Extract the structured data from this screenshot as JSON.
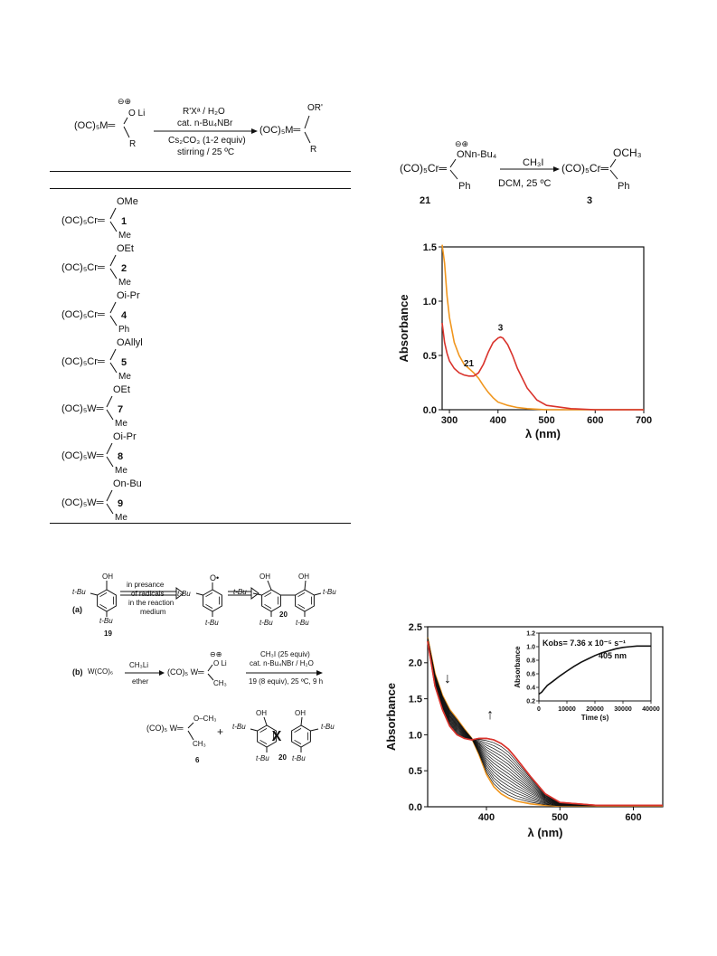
{
  "scheme_top_left": {
    "reactant_charges": "⊖⊕",
    "reactant_oli": "O Li",
    "reactant_core": "(OC)₅M═",
    "reactant_r": "R",
    "conditions_1": "R'Xᵃ / H₂O",
    "conditions_2": "cat. n-Bu₄NBr",
    "conditions_3": "Cs₂CO₃ (1-2 equiv)",
    "conditions_4": "stirring / 25 ºC",
    "product_or": "OR'",
    "product_core": "(OC)₅M═",
    "product_r": "R"
  },
  "compound_list": [
    {
      "metal": "(OC)₅Cr═",
      "or": "OMe",
      "sub": "Me",
      "number": "1"
    },
    {
      "metal": "(OC)₅Cr═",
      "or": "OEt",
      "sub": "Me",
      "number": "2"
    },
    {
      "metal": "(OC)₅Cr═",
      "or": "Oi-Pr",
      "sub": "Ph",
      "number": "4"
    },
    {
      "metal": "(OC)₅Cr═",
      "or": "OAllyl",
      "sub": "Me",
      "number": "5"
    },
    {
      "metal": "(OC)₅W═",
      "or": "OEt",
      "sub": "Me",
      "number": "7"
    },
    {
      "metal": "(OC)₅W═",
      "or": "Oi-Pr",
      "sub": "Me",
      "number": "8"
    },
    {
      "metal": "(OC)₅W═",
      "or": "On-Bu",
      "sub": "Me",
      "number": "9"
    }
  ],
  "scheme_top_right": {
    "charges": "⊖⊕",
    "reactant_sub": "ONn-Bu₄",
    "reactant_core": "(CO)₅Cr═",
    "reactant_ph": "Ph",
    "reactant_number": "21",
    "reagent": "CH₃I",
    "conditions": "DCM, 25 ºC",
    "product_och3": "OCH₃",
    "product_core": "(CO)₅Cr═",
    "product_ph": "Ph",
    "product_number": "3"
  },
  "scheme_bottom_left": {
    "a_label": "(a)",
    "b_label": "(b)",
    "arrow1_text_1": "in presance",
    "arrow1_text_2": "of radicals",
    "arrow2_text_1": "in the reaction",
    "arrow2_text_2": "medium",
    "oh": "OH",
    "t_bu": "t-Bu",
    "radical_o": "O•",
    "compound_19": "19",
    "compound_20": "20",
    "b_reactant": "W(CO)₆",
    "b_reagent_top": "CH₃Li",
    "b_reagent_bottom": "ether",
    "b_intermediate_charges": "⊖⊕",
    "b_intermediate_oli": "O Li",
    "b_intermediate_core": "(CO)₅ W═",
    "b_intermediate_ch3": "CH₃",
    "b_cond_1": "CH₃I (25 equiv)",
    "b_cond_2": "cat. n-Bu₄NBr / H₂O",
    "b_cond_3": "19 (8 equiv), 25 ºC, 9 h",
    "b_product_core": "(CO)₅ W═",
    "b_product_och3": "O–CH₃",
    "b_product_ch3": "CH₃",
    "compound_6": "6",
    "plus": "+",
    "cross": "X"
  },
  "chart_data": [
    {
      "type": "line",
      "xlabel": "λ (nm)",
      "ylabel": "Absorbance",
      "xlim": [
        285,
        700
      ],
      "ylim": [
        0.0,
        1.5
      ],
      "xticks": [
        300,
        400,
        500,
        600,
        700
      ],
      "yticks": [
        0.0,
        0.5,
        1.0,
        1.5
      ],
      "annotations": [
        "21",
        "3"
      ],
      "series": [
        {
          "name": "",
          "color": "#f0961e",
          "x": [
            285,
            290,
            295,
            300,
            310,
            320,
            330,
            340,
            350,
            360,
            370,
            380,
            390,
            400,
            420,
            440,
            460,
            480,
            500,
            550,
            600,
            650,
            700
          ],
          "y": [
            1.52,
            1.35,
            1.05,
            0.85,
            0.62,
            0.5,
            0.42,
            0.38,
            0.34,
            0.29,
            0.22,
            0.16,
            0.11,
            0.07,
            0.04,
            0.02,
            0.01,
            0.005,
            0.0,
            0.0,
            0.0,
            0.0,
            0.0
          ]
        },
        {
          "name": "",
          "color": "#d9332c",
          "x": [
            285,
            290,
            295,
            300,
            310,
            320,
            330,
            340,
            350,
            360,
            370,
            380,
            390,
            400,
            405,
            410,
            420,
            430,
            440,
            460,
            480,
            500,
            550,
            600,
            650,
            700
          ],
          "y": [
            0.8,
            0.62,
            0.52,
            0.45,
            0.38,
            0.34,
            0.32,
            0.31,
            0.31,
            0.34,
            0.42,
            0.53,
            0.62,
            0.66,
            0.67,
            0.66,
            0.6,
            0.5,
            0.38,
            0.2,
            0.09,
            0.04,
            0.01,
            0.0,
            0.0,
            0.0
          ]
        }
      ]
    },
    {
      "type": "line",
      "xlabel": "λ (nm)",
      "ylabel": "Absorbance",
      "xlim": [
        320,
        640
      ],
      "ylim": [
        0.0,
        2.5
      ],
      "xticks": [
        400,
        500,
        600
      ],
      "yticks": [
        0.0,
        0.5,
        1.0,
        1.5,
        2.0,
        2.5
      ],
      "series": [
        {
          "name": "",
          "color": "#f0961e",
          "x": [
            320,
            330,
            340,
            350,
            360,
            370,
            380,
            390,
            400,
            410,
            420,
            430,
            440,
            460,
            480,
            500,
            550,
            600,
            640
          ],
          "y": [
            2.35,
            1.85,
            1.55,
            1.35,
            1.22,
            1.08,
            0.95,
            0.72,
            0.45,
            0.28,
            0.18,
            0.12,
            0.08,
            0.04,
            0.02,
            0.01,
            0.01,
            0.01,
            0.01
          ]
        },
        {
          "name": "",
          "color": "#d9332c",
          "x": [
            320,
            330,
            340,
            350,
            360,
            370,
            380,
            390,
            400,
            410,
            420,
            430,
            440,
            460,
            480,
            500,
            550,
            600,
            640
          ],
          "y": [
            2.3,
            1.68,
            1.35,
            1.12,
            1.0,
            0.95,
            0.93,
            0.95,
            0.95,
            0.93,
            0.88,
            0.8,
            0.68,
            0.42,
            0.18,
            0.06,
            0.02,
            0.02,
            0.02
          ]
        }
      ],
      "annotations": [
        "↓",
        "↑"
      ],
      "inset": {
        "type": "line",
        "xlabel": "Time (s)",
        "ylabel": "Absorbance",
        "xlim": [
          0,
          40000
        ],
        "ylim": [
          0.2,
          1.2
        ],
        "xticks": [
          0,
          10000,
          20000,
          30000,
          40000
        ],
        "yticks": [
          0.2,
          0.4,
          0.6,
          0.8,
          1.0,
          1.2
        ],
        "annotation_kobs": "Kobs= 7.36 x 10⁻⁵ s⁻¹",
        "annotation_wavelength": "405 nm",
        "series": [
          {
            "name": "",
            "color": "#111111",
            "x": [
              0,
              1000,
              2000,
              3000,
              5000,
              7500,
              10000,
              12500,
              15000,
              17500,
              20000,
              22500,
              25000,
              27500,
              30000,
              32500,
              35000,
              37500,
              40000
            ],
            "y": [
              0.3,
              0.33,
              0.38,
              0.43,
              0.49,
              0.57,
              0.64,
              0.71,
              0.77,
              0.82,
              0.87,
              0.91,
              0.94,
              0.97,
              0.99,
              1.0,
              1.01,
              1.01,
              1.01
            ]
          }
        ]
      }
    }
  ]
}
